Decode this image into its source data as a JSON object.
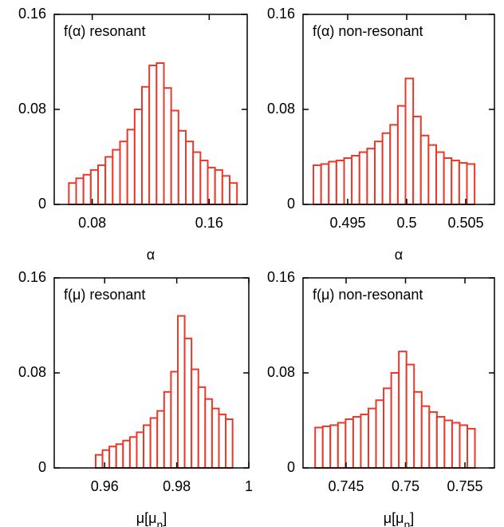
{
  "chart_data": [
    {
      "type": "histogram",
      "title": "f(α) resonant",
      "xlabel": [
        "α"
      ],
      "color": "#e8392a",
      "bins": [
        0.064,
        0.069,
        0.074,
        0.079,
        0.084,
        0.089,
        0.094,
        0.099,
        0.104,
        0.109,
        0.114,
        0.119,
        0.124,
        0.129,
        0.134,
        0.139,
        0.144,
        0.149,
        0.154,
        0.159,
        0.164,
        0.169,
        0.174,
        0.179
      ],
      "values": [
        0.018,
        0.022,
        0.025,
        0.029,
        0.033,
        0.04,
        0.046,
        0.053,
        0.063,
        0.08,
        0.099,
        0.117,
        0.119,
        0.098,
        0.079,
        0.062,
        0.053,
        0.044,
        0.037,
        0.031,
        0.029,
        0.024,
        0.018
      ],
      "xlim": [
        0.054,
        0.186
      ],
      "xticks": [
        0.08,
        0.16
      ],
      "ylim": [
        0,
        0.16
      ],
      "yticks": [
        0,
        0.08,
        0.16
      ]
    },
    {
      "type": "histogram",
      "title": "f(α) non-resonant",
      "xlabel": [
        "α"
      ],
      "color": "#e8392a",
      "bins": [
        0.4921,
        0.49275,
        0.4934,
        0.49405,
        0.4947,
        0.49535,
        0.496,
        0.49665,
        0.4973,
        0.49795,
        0.4986,
        0.49925,
        0.4999,
        0.50055,
        0.5012,
        0.50185,
        0.5025,
        0.50315,
        0.5038,
        0.50445,
        0.5051,
        0.50575
      ],
      "values": [
        0.033,
        0.034,
        0.036,
        0.037,
        0.039,
        0.041,
        0.044,
        0.047,
        0.053,
        0.06,
        0.067,
        0.083,
        0.106,
        0.074,
        0.058,
        0.05,
        0.044,
        0.039,
        0.037,
        0.035,
        0.034
      ],
      "xlim": [
        0.49122,
        0.50743
      ],
      "xticks": [
        0.495,
        0.5,
        0.505
      ],
      "ylim": [
        0,
        0.16
      ],
      "yticks": [
        0,
        0.08,
        0.16
      ]
    },
    {
      "type": "histogram",
      "title": "f(μ) resonant",
      "xlabel": [
        "μ[μ",
        "n",
        "]"
      ],
      "color": "#e8392a",
      "bins": [
        0.9575,
        0.9594,
        0.9613,
        0.9632,
        0.9651,
        0.967,
        0.9689,
        0.9708,
        0.9727,
        0.9746,
        0.9765,
        0.9784,
        0.9803,
        0.9822,
        0.9841,
        0.986,
        0.9879,
        0.9898,
        0.9917,
        0.9936,
        0.9955
      ],
      "values": [
        0.011,
        0.015,
        0.018,
        0.02,
        0.023,
        0.026,
        0.03,
        0.036,
        0.042,
        0.048,
        0.064,
        0.081,
        0.128,
        0.109,
        0.083,
        0.068,
        0.058,
        0.05,
        0.045,
        0.041
      ],
      "xlim": [
        0.946,
        1
      ],
      "xticks": [
        0.96,
        0.98,
        1
      ],
      "ylim": [
        0,
        0.16
      ],
      "yticks": [
        0,
        0.08,
        0.16
      ]
    },
    {
      "type": "histogram",
      "title": "f(μ) non-resonant",
      "xlabel": [
        "μ[μ",
        "n",
        "]"
      ],
      "color": "#e8392a",
      "bins": [
        0.7424,
        0.74304,
        0.74368,
        0.74432,
        0.74496,
        0.7456,
        0.74624,
        0.74688,
        0.74752,
        0.74816,
        0.7488,
        0.74944,
        0.75008,
        0.75072,
        0.75136,
        0.752,
        0.75264,
        0.75328,
        0.75392,
        0.75456,
        0.7552,
        0.75584
      ],
      "values": [
        0.034,
        0.035,
        0.036,
        0.038,
        0.041,
        0.043,
        0.045,
        0.05,
        0.057,
        0.067,
        0.08,
        0.098,
        0.087,
        0.064,
        0.052,
        0.047,
        0.043,
        0.04,
        0.038,
        0.036,
        0.033
      ],
      "xlim": [
        0.74138,
        0.75748
      ],
      "xticks": [
        0.745,
        0.75,
        0.755
      ],
      "ylim": [
        0,
        0.16
      ],
      "yticks": [
        0,
        0.08,
        0.16
      ]
    }
  ]
}
